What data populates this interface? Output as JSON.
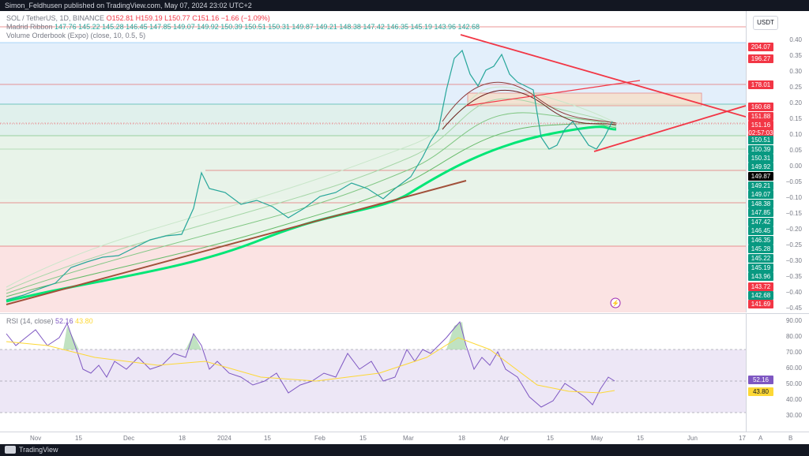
{
  "header": {
    "text": "Simon_Feldhusen published on TradingView.com, May 07, 2024 23:02 UTC+2"
  },
  "legend": {
    "symbol_line": "SOL / TetherUS, 1D, BINANCE",
    "ohlc": [
      "O152.81",
      "H159.19",
      "L150.77",
      "C151.16",
      "−1.66 (−1.09%)"
    ],
    "ribbon_name": "Madrid Ribbon",
    "ribbon_values": "147.76  145.22  145.28  146.45  147.85  149.07  149.92  150.39  150.51  150.31  149.87  149.21  148.38  147.42  146.35  145.19  143.96  142.68",
    "vob_name": "Volume Orderbook (Expo) (close, 10, 0.5, 5)"
  },
  "currency_button": "USDT",
  "price_scale": {
    "ticks": [
      "0.40",
      "0.35",
      "0.30",
      "0.25",
      "0.20",
      "0.15",
      "0.10",
      "0.05",
      "0.00",
      "−0.05",
      "−0.10",
      "−0.15",
      "−0.20",
      "−0.25",
      "−0.30",
      "−0.35",
      "−0.40",
      "−0.45"
    ],
    "tags": [
      {
        "label": "204.07",
        "color": "#f23645"
      },
      {
        "label": "196.27",
        "color": "#f23645"
      },
      {
        "label": "178.01",
        "color": "#f23645"
      },
      {
        "label": "160.68",
        "color": "#f23645"
      },
      {
        "label": "151.88",
        "color": "#f23645"
      },
      {
        "label": "151.16",
        "color": "#f23645"
      },
      {
        "label": "02:57:03",
        "color": "#f23645"
      },
      {
        "label": "150.51",
        "color": "#089981"
      },
      {
        "label": "150.39",
        "color": "#089981"
      },
      {
        "label": "150.31",
        "color": "#089981"
      },
      {
        "label": "149.92",
        "color": "#089981"
      },
      {
        "label": "149.87",
        "color": "#000000"
      },
      {
        "label": "149.21",
        "color": "#089981"
      },
      {
        "label": "149.07",
        "color": "#089981"
      },
      {
        "label": "148.38",
        "color": "#089981"
      },
      {
        "label": "147.85",
        "color": "#089981"
      },
      {
        "label": "147.42",
        "color": "#089981"
      },
      {
        "label": "146.45",
        "color": "#089981"
      },
      {
        "label": "146.35",
        "color": "#089981"
      },
      {
        "label": "145.28",
        "color": "#089981"
      },
      {
        "label": "145.22",
        "color": "#089981"
      },
      {
        "label": "145.19",
        "color": "#089981"
      },
      {
        "label": "143.96",
        "color": "#089981"
      },
      {
        "label": "143.72",
        "color": "#f23645"
      },
      {
        "label": "142.68",
        "color": "#089981"
      },
      {
        "label": "141.69",
        "color": "#f23645"
      }
    ]
  },
  "rsi": {
    "legend": "RSI (14, close)",
    "value1": "52.16",
    "value2": "43.80",
    "ticks": [
      "90.00",
      "80.00",
      "70.00",
      "60.00",
      "50.00",
      "40.00",
      "30.00"
    ],
    "tag1": "52.16",
    "tag2": "43.80"
  },
  "time_axis": [
    "Nov",
    "15",
    "Dec",
    "18",
    "2024",
    "15",
    "Feb",
    "15",
    "Mar",
    "18",
    "Apr",
    "15",
    "May",
    "15",
    "Jun",
    "17"
  ],
  "axis_buttons": [
    "A",
    "B"
  ],
  "footer_brand": "TradingView"
}
